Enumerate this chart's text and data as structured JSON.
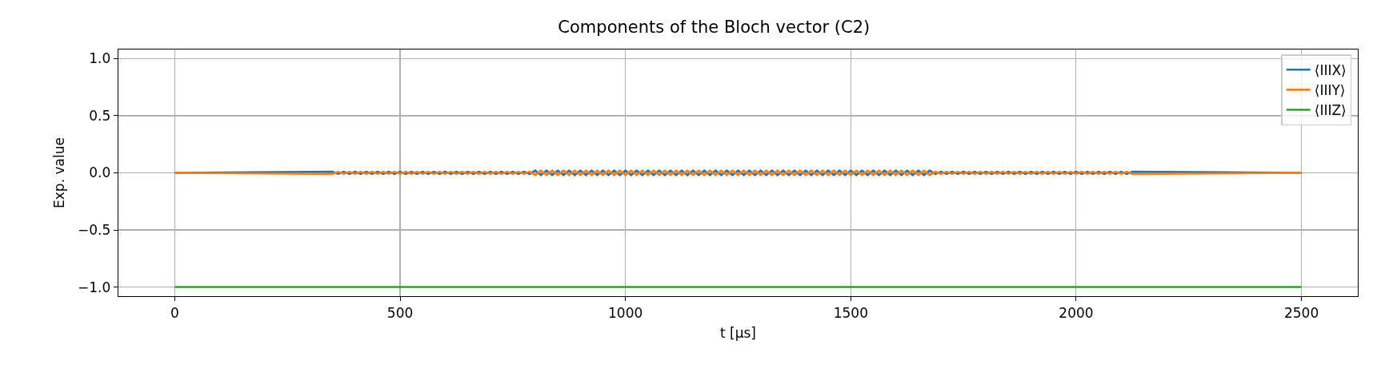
{
  "chart_data": {
    "type": "line",
    "title": "Components of the Bloch vector (C2)",
    "xlabel": "t [μs]",
    "ylabel": "Exp. value",
    "x": [
      0,
      350,
      362.5,
      375,
      387.5,
      400,
      412.5,
      425,
      437.5,
      450,
      462.5,
      475,
      487.5,
      500,
      512.5,
      525,
      537.5,
      550,
      562.5,
      575,
      587.5,
      600,
      612.5,
      625,
      637.5,
      650,
      662.5,
      675,
      687.5,
      700,
      712.5,
      725,
      737.5,
      750,
      762.5,
      775,
      787.5,
      800,
      812.5,
      825,
      837.5,
      850,
      862.5,
      875,
      887.5,
      900,
      912.5,
      925,
      937.5,
      950,
      962.5,
      975,
      987.5,
      1000,
      1012.5,
      1025,
      1037.5,
      1050,
      1062.5,
      1075,
      1087.5,
      1100,
      1112.5,
      1125,
      1137.5,
      1150,
      1162.5,
      1175,
      1187.5,
      1200,
      1212.5,
      1225,
      1237.5,
      1250,
      1262.5,
      1275,
      1287.5,
      1300,
      1312.5,
      1325,
      1337.5,
      1350,
      1362.5,
      1375,
      1387.5,
      1400,
      1412.5,
      1425,
      1437.5,
      1450,
      1462.5,
      1475,
      1487.5,
      1500,
      1512.5,
      1525,
      1537.5,
      1550,
      1562.5,
      1575,
      1587.5,
      1600,
      1612.5,
      1625,
      1637.5,
      1650,
      1662.5,
      1675,
      1687.5,
      1700,
      1712.5,
      1725,
      1737.5,
      1750,
      1762.5,
      1775,
      1787.5,
      1800,
      1812.5,
      1825,
      1837.5,
      1850,
      1862.5,
      1875,
      1887.5,
      1900,
      1912.5,
      1925,
      1937.5,
      1950,
      1962.5,
      1975,
      1987.5,
      2000,
      2012.5,
      2025,
      2037.5,
      2050,
      2062.5,
      2075,
      2087.5,
      2100,
      2112.5,
      2125,
      2500
    ],
    "series": [
      {
        "name": "⟨IIIX⟩",
        "color": "#1f77b4",
        "values": [
          0,
          0.01,
          -0.01,
          0.01,
          -0.01,
          0.01,
          -0.01,
          0.01,
          -0.01,
          0.01,
          -0.01,
          0.01,
          -0.01,
          0.01,
          -0.01,
          0.01,
          -0.01,
          0.01,
          -0.01,
          0.01,
          -0.01,
          0.01,
          -0.01,
          0.01,
          -0.01,
          0.01,
          -0.01,
          0.01,
          -0.01,
          0.01,
          -0.01,
          0.01,
          -0.01,
          0.01,
          -0.01,
          0.01,
          -0.01,
          0.02,
          -0.02,
          0.02,
          -0.02,
          0.02,
          -0.02,
          0.02,
          -0.02,
          0.02,
          -0.02,
          0.02,
          -0.02,
          0.02,
          -0.02,
          0.02,
          -0.02,
          0.02,
          -0.02,
          0.02,
          -0.02,
          0.02,
          -0.02,
          0.02,
          -0.02,
          0.02,
          -0.02,
          0.02,
          -0.02,
          0.02,
          -0.02,
          0.02,
          -0.02,
          0.02,
          -0.02,
          0.02,
          -0.02,
          0.02,
          -0.02,
          0.02,
          -0.02,
          0.02,
          -0.02,
          0.02,
          -0.02,
          0.02,
          -0.02,
          0.02,
          -0.02,
          0.02,
          -0.02,
          0.02,
          -0.02,
          0.02,
          -0.02,
          0.02,
          -0.02,
          0.02,
          -0.02,
          0.02,
          -0.02,
          0.02,
          -0.02,
          0.02,
          -0.02,
          0.02,
          -0.02,
          0.02,
          -0.02,
          0.02,
          -0.02,
          0.02,
          -0.01,
          0.01,
          -0.01,
          0.01,
          -0.01,
          0.01,
          -0.01,
          0.01,
          -0.01,
          0.01,
          -0.01,
          0.01,
          -0.01,
          0.01,
          -0.01,
          0.01,
          -0.01,
          0.01,
          -0.01,
          0.01,
          -0.01,
          0.01,
          -0.01,
          0.01,
          -0.01,
          0.01,
          -0.01,
          0.01,
          -0.01,
          0.01,
          -0.01,
          0.01,
          -0.01,
          0.01,
          -0.01,
          0.01,
          0
        ]
      },
      {
        "name": "⟨IIIY⟩",
        "color": "#ff7f0e",
        "values": [
          0,
          -0.01,
          0.01,
          -0.01,
          0.01,
          -0.01,
          0.01,
          -0.01,
          0.01,
          -0.01,
          0.01,
          -0.01,
          0.01,
          -0.01,
          0.01,
          -0.01,
          0.01,
          -0.01,
          0.01,
          -0.01,
          0.01,
          -0.01,
          0.01,
          -0.01,
          0.01,
          -0.01,
          0.01,
          -0.01,
          0.01,
          -0.01,
          0.01,
          -0.01,
          0.01,
          -0.01,
          0.01,
          -0.01,
          0.01,
          -0.02,
          0.02,
          -0.02,
          0.02,
          -0.02,
          0.02,
          -0.02,
          0.02,
          -0.02,
          0.02,
          -0.02,
          0.02,
          -0.02,
          0.02,
          -0.02,
          0.02,
          -0.02,
          0.02,
          -0.02,
          0.02,
          -0.02,
          0.02,
          -0.02,
          0.02,
          -0.02,
          0.02,
          -0.02,
          0.02,
          -0.02,
          0.02,
          -0.02,
          0.02,
          -0.02,
          0.02,
          -0.02,
          0.02,
          -0.02,
          0.02,
          -0.02,
          0.02,
          -0.02,
          0.02,
          -0.02,
          0.02,
          -0.02,
          0.02,
          -0.02,
          0.02,
          -0.02,
          0.02,
          -0.02,
          0.02,
          -0.02,
          0.02,
          -0.02,
          0.02,
          -0.02,
          0.02,
          -0.02,
          0.02,
          -0.02,
          0.02,
          -0.02,
          0.02,
          -0.02,
          0.02,
          -0.02,
          0.02,
          -0.02,
          0.02,
          -0.02,
          0.01,
          -0.01,
          0.01,
          -0.01,
          0.01,
          -0.01,
          0.01,
          -0.01,
          0.01,
          -0.01,
          0.01,
          -0.01,
          0.01,
          -0.01,
          0.01,
          -0.01,
          0.01,
          -0.01,
          0.01,
          -0.01,
          0.01,
          -0.01,
          0.01,
          -0.01,
          0.01,
          -0.01,
          0.01,
          -0.01,
          0.01,
          -0.01,
          0.01,
          -0.01,
          0.01,
          -0.01,
          0.01,
          -0.01,
          0
        ]
      },
      {
        "name": "⟨IIIZ⟩",
        "color": "#2ca02c",
        "x": [
          0,
          2500
        ],
        "values": [
          -1,
          -1
        ]
      }
    ],
    "xlim": [
      -125,
      2625
    ],
    "xticks": [
      0,
      500,
      1000,
      1500,
      2000,
      2500
    ],
    "ylim": [
      -1.08,
      1.08
    ],
    "yticks": [
      {
        "value": -1,
        "label": "−1.0"
      },
      {
        "value": -0.5,
        "label": "−0.5"
      },
      {
        "value": 0,
        "label": "0.0"
      },
      {
        "value": 0.5,
        "label": "0.5"
      },
      {
        "value": 1,
        "label": "1.0"
      }
    ],
    "grid": true,
    "legend": "top right"
  }
}
